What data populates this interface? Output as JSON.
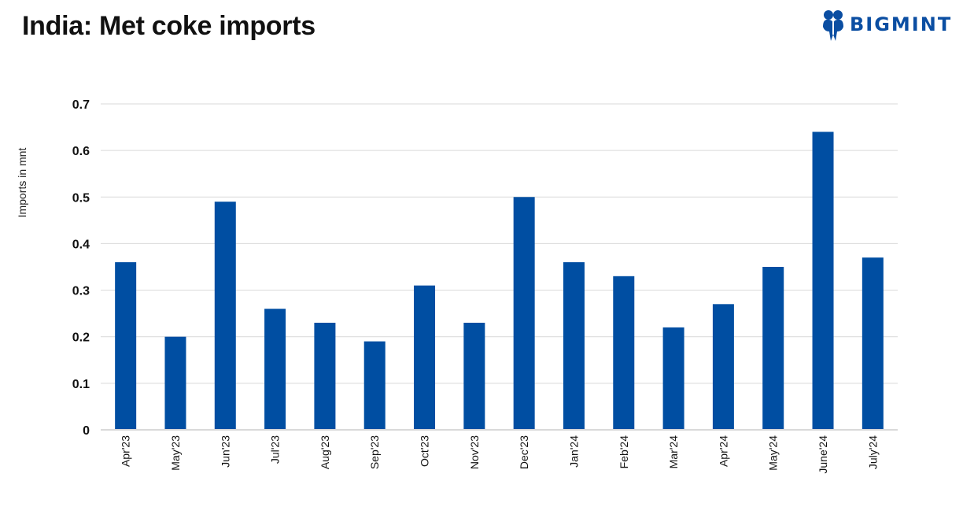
{
  "title": "India: Met coke imports",
  "logo": {
    "text": "BIGMINT",
    "color": "#0b4ea2"
  },
  "chart_data": {
    "type": "bar",
    "title": "India: Met coke imports",
    "xlabel": "",
    "ylabel": "Imports in mnt",
    "ylim": [
      0,
      0.7
    ],
    "yticks": [
      "0",
      "0.1",
      "0.2",
      "0.3",
      "0.4",
      "0.5",
      "0.6",
      "0.7"
    ],
    "grid": true,
    "bar_color": "#004ea2",
    "categories": [
      "Apr'23",
      "May'23",
      "Jun'23",
      "Jul'23",
      "Aug'23",
      "Sep'23",
      "Oct'23",
      "Nov'23",
      "Dec'23",
      "Jan'24",
      "Feb'24",
      "Mar'24",
      "Apr'24",
      "May'24",
      "June'24",
      "July'24"
    ],
    "values": [
      0.36,
      0.2,
      0.49,
      0.26,
      0.23,
      0.19,
      0.31,
      0.23,
      0.5,
      0.36,
      0.33,
      0.22,
      0.27,
      0.35,
      0.64,
      0.37
    ]
  }
}
